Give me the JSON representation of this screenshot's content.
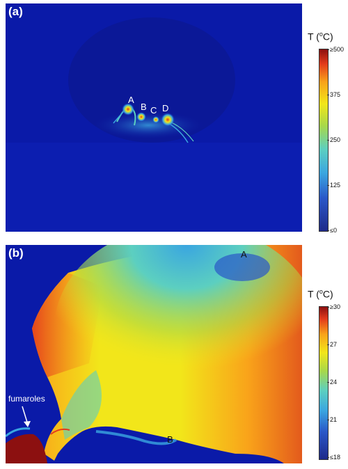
{
  "panel_a": {
    "label": "(a)",
    "markers": [
      "A",
      "B",
      "C",
      "D"
    ],
    "colorbar": {
      "title_prefix": "T (",
      "title_sup": "o",
      "title_suffix": "C)",
      "ticks": [
        "≥500",
        "375",
        "250",
        "125",
        "≤0"
      ]
    }
  },
  "panel_b": {
    "label": "(b)",
    "markers": [
      "A",
      "B"
    ],
    "annotation": "fumaroles",
    "colorbar": {
      "title_prefix": "T (",
      "title_sup": "o",
      "title_suffix": "C)",
      "ticks": [
        "≥30",
        "27",
        "24",
        "21",
        "≤18"
      ]
    }
  },
  "colors": {
    "background_cold": "#0a1aa8",
    "hot": "#8c1010",
    "mid": "#f2e61a"
  }
}
